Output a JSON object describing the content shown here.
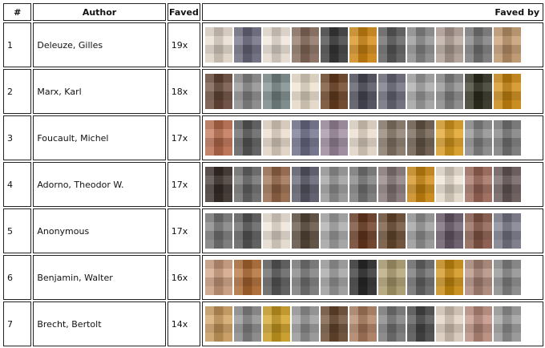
{
  "headers": {
    "num": "#",
    "author": "Author",
    "faved": "Faved",
    "faved_by": "Faved by"
  },
  "rows": [
    {
      "num": "1",
      "author": "Deleuze, Gilles",
      "faved": "19x",
      "thumbs": [
        "#e9ddcf",
        "#6b6b7f",
        "#efe5d9",
        "#8a6e5e",
        "#3b3b3b",
        "#d58a12",
        "#5d5d5d",
        "#8e8e8e",
        "#b5a49a",
        "#7a7a7a",
        "#c49a6e"
      ]
    },
    {
      "num": "2",
      "author": "Marx, Karl",
      "faved": "18x",
      "thumbs": [
        "#6a4a3a",
        "#8b8b8b",
        "#7a8a8a",
        "#eee2cf",
        "#6a4020",
        "#4c4c5a",
        "#6b6b7b",
        "#a6a6a6",
        "#8a8a8a",
        "#2f2f20",
        "#d08a10"
      ]
    },
    {
      "num": "3",
      "author": "Foucault, Michel",
      "faved": "17x",
      "thumbs": [
        "#c07050",
        "#5b5b5b",
        "#eadccb",
        "#6f6f8a",
        "#a08ca0",
        "#eadccb",
        "#8a7a6a",
        "#6a5a4a",
        "#e0a020",
        "#8b8b8b",
        "#7a7a7a"
      ]
    },
    {
      "num": "4",
      "author": "Adorno, Theodor W.",
      "faved": "17x",
      "thumbs": [
        "#3a2f2a",
        "#6a6a6a",
        "#9a6a4a",
        "#5a5a6a",
        "#9a9a9a",
        "#7a7a7a",
        "#8a7a7a",
        "#d08a10",
        "#ede2d2",
        "#a06a5a",
        "#6a5a5a"
      ]
    },
    {
      "num": "5",
      "author": "Anonymous",
      "faved": "17x",
      "thumbs": [
        "#7a7a7a",
        "#5a5a5a",
        "#eee4d6",
        "#5a4a3a",
        "#a8a8a8",
        "#6a3a20",
        "#6a4a30",
        "#9a9a9a",
        "#6a5a6a",
        "#8a5a4a",
        "#7a7a8a"
      ]
    },
    {
      "num": "6",
      "author": "Benjamin, Walter",
      "faved": "16x",
      "thumbs": [
        "#d0a080",
        "#b06a30",
        "#5a5a5a",
        "#7a7a7a",
        "#a0a0a0",
        "#2a2a2a",
        "#b0a070",
        "#6a6a6a",
        "#d09010",
        "#b08a7a",
        "#8a8a8a"
      ]
    },
    {
      "num": "7",
      "author": "Brecht, Bertolt",
      "faved": "14x",
      "thumbs": [
        "#d0a060",
        "#8a8a8a",
        "#d0a020",
        "#9a9a9a",
        "#6a4a30",
        "#b08060",
        "#7a7a7a",
        "#4a4a4a",
        "#e0d0c0",
        "#c09080",
        "#9a9a9a"
      ]
    }
  ]
}
